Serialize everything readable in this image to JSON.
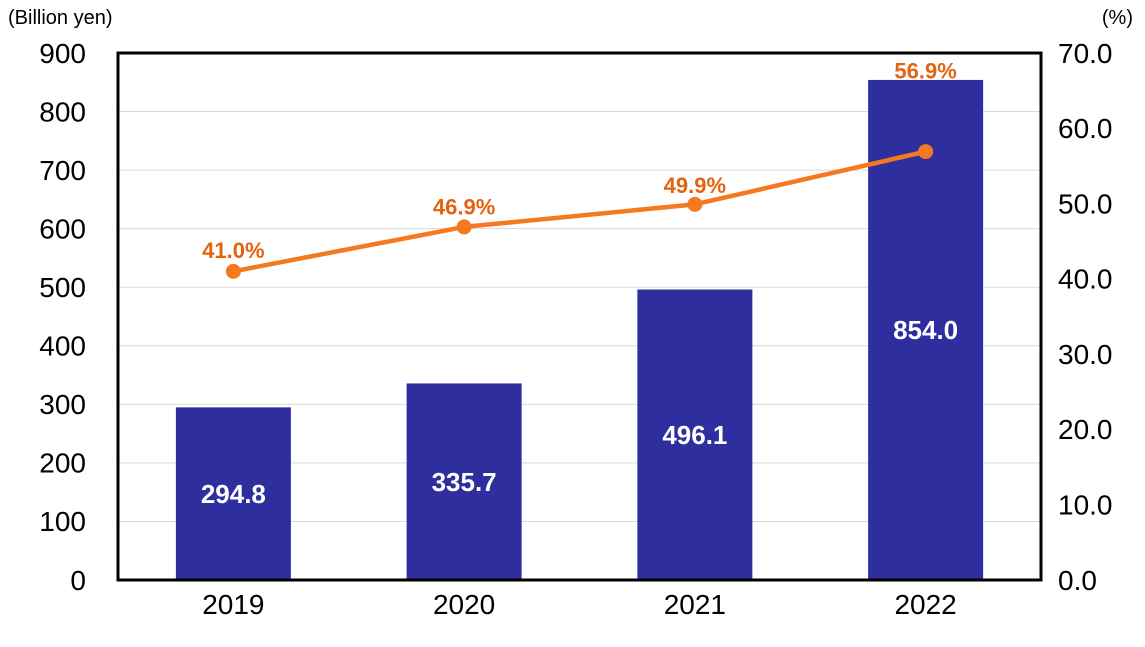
{
  "chart_data": {
    "type": "bar+line",
    "categories": [
      "2019",
      "2020",
      "2021",
      "2022"
    ],
    "series": [
      {
        "name": "amount-billion-yen",
        "type": "bar",
        "axis": "left",
        "values": [
          294.8,
          335.7,
          496.1,
          854.0
        ],
        "labels": [
          "294.8",
          "335.7",
          "496.1",
          "854.0"
        ],
        "color": "#2E2E9E",
        "label_color": "#FFFFFF"
      },
      {
        "name": "percentage",
        "type": "line",
        "axis": "right",
        "values": [
          41.0,
          46.9,
          49.9,
          56.9
        ],
        "labels": [
          "41.0%",
          "46.9%",
          "49.9%",
          "56.9%"
        ],
        "color": "#F5791F",
        "label_color": "#E5620E",
        "label_offsets_y": [
          -21,
          -20,
          -19,
          -81
        ]
      }
    ],
    "left_axis": {
      "unit": "(Billion yen)",
      "min": 0,
      "max": 900,
      "step": 100,
      "tick_labels": [
        "0",
        "100",
        "200",
        "300",
        "400",
        "500",
        "600",
        "700",
        "800",
        "900"
      ]
    },
    "right_axis": {
      "unit": "(%)",
      "min": 0,
      "max": 70,
      "step": 10,
      "tick_labels": [
        "0.0",
        "10.0",
        "20.0",
        "30.0",
        "40.0",
        "50.0",
        "60.0",
        "70.0"
      ]
    },
    "grid": true,
    "gridline_color": "#D9D9D9",
    "border_color": "#000000",
    "background": "#FFFFFF",
    "legend": "none"
  }
}
